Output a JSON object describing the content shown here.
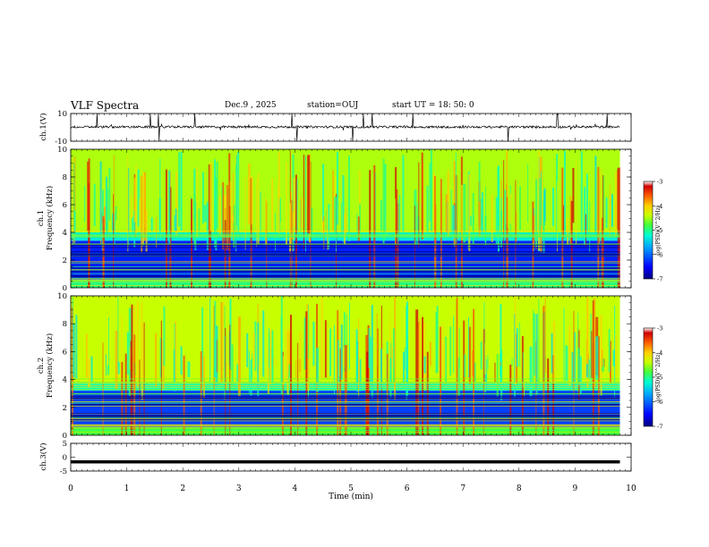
{
  "header": {
    "title": "VLF Spectra",
    "date": "Dec.9 , 2025",
    "station": "station=OUJ",
    "start": "start UT = 18: 50: 0"
  },
  "colors": {
    "frame": "#000000",
    "trace": "#000000",
    "colormap": [
      "#00007f",
      "#0000ff",
      "#00a0ff",
      "#00ffd0",
      "#40ff40",
      "#c8ff00",
      "#ffd000",
      "#ff6000",
      "#d00000",
      "#ffffff"
    ]
  },
  "chart_data": [
    {
      "type": "line",
      "name": "ch1-waveform",
      "ylabel": "ch.1(V)",
      "ylim": [
        -10,
        10
      ],
      "yticks": [
        "10",
        "-10"
      ],
      "x_range_min": [
        0,
        9.8
      ],
      "baseline_v": 0.3,
      "description_values": "noisy trace near 0 V with sporadic spikes"
    },
    {
      "type": "heatmap",
      "name": "ch1-spectrogram",
      "ylabel": "ch.1 Frequency (kHz)",
      "ylim": [
        0,
        10
      ],
      "yticks": [
        "0",
        "2",
        "4",
        "6",
        "8",
        "10"
      ],
      "x_range_min": [
        0,
        9.8
      ],
      "colorbar": {
        "label": "log(PSD)(V^2/Hz)",
        "range": [
          -7,
          -3
        ],
        "ticks": [
          "-3",
          "-4",
          "-5",
          "-6",
          "-7"
        ]
      },
      "bands": [
        {
          "from_khz": 0,
          "to_khz": 0.6,
          "level": -5.2
        },
        {
          "from_khz": 0.6,
          "to_khz": 3.4,
          "level": -6.4
        },
        {
          "from_khz": 3.4,
          "to_khz": 4.0,
          "level": -5.6
        },
        {
          "from_khz": 4.0,
          "to_khz": 10,
          "level": -4.6
        }
      ]
    },
    {
      "type": "heatmap",
      "name": "ch2-spectrogram",
      "ylabel": "ch.2 Frequency (kHz)",
      "ylim": [
        0,
        10
      ],
      "yticks": [
        "0",
        "2",
        "4",
        "6",
        "8",
        "10"
      ],
      "x_range_min": [
        0,
        9.8
      ],
      "colorbar": {
        "label": "log(PSD)(V^2/Hz)",
        "range": [
          -7,
          -3
        ],
        "ticks": [
          "-3",
          "-4",
          "-5",
          "-6",
          "-7"
        ]
      },
      "bands": [
        {
          "from_khz": 0,
          "to_khz": 0.6,
          "level": -5.0
        },
        {
          "from_khz": 0.6,
          "to_khz": 3.2,
          "level": -6.3
        },
        {
          "from_khz": 3.2,
          "to_khz": 3.8,
          "level": -5.4
        },
        {
          "from_khz": 3.8,
          "to_khz": 10,
          "level": -4.5
        }
      ]
    },
    {
      "type": "line",
      "name": "ch3-level",
      "ylabel": "ch.3(V)",
      "ylim": [
        -5,
        5
      ],
      "yticks": [
        "5",
        "0",
        "-5"
      ],
      "x_range_min": [
        0,
        9.8
      ],
      "constant_v": -1.7
    }
  ],
  "xaxis": {
    "label": "Time (min)",
    "range": [
      0,
      10
    ],
    "ticks": [
      "0",
      "1",
      "2",
      "3",
      "4",
      "5",
      "6",
      "7",
      "8",
      "9",
      "10"
    ]
  }
}
